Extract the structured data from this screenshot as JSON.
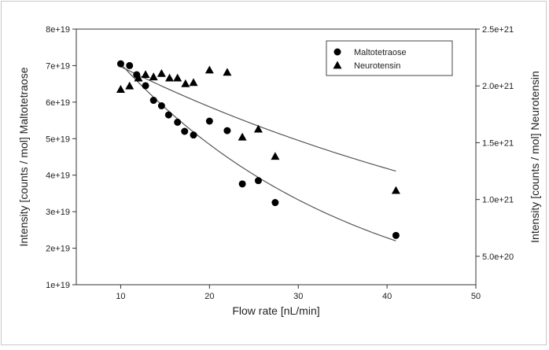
{
  "chart_data": {
    "type": "scatter",
    "xlabel": "Flow rate [nL/min]",
    "ylabel_left": "Intensity [counts / mol] Maltotetraose",
    "ylabel_right": "Intensity [counts / mol] Neurotensin",
    "xlim": [
      5,
      50
    ],
    "ylim_left": [
      1e+19,
      8e+19
    ],
    "ylim_right": [
      2.5e+20,
      2.5e+21
    ],
    "x_ticks": [
      {
        "value": 10,
        "label": "10"
      },
      {
        "value": 20,
        "label": "20"
      },
      {
        "value": 30,
        "label": "30"
      },
      {
        "value": 40,
        "label": "40"
      },
      {
        "value": 50,
        "label": "50"
      }
    ],
    "y_left_ticks": [
      {
        "value": 1e+19,
        "label": "1e+19"
      },
      {
        "value": 2e+19,
        "label": "2e+19"
      },
      {
        "value": 3e+19,
        "label": "3e+19"
      },
      {
        "value": 4e+19,
        "label": "4e+19"
      },
      {
        "value": 5e+19,
        "label": "5e+19"
      },
      {
        "value": 6e+19,
        "label": "6e+19"
      },
      {
        "value": 7e+19,
        "label": "7e+19"
      },
      {
        "value": 8e+19,
        "label": "8e+19"
      }
    ],
    "y_right_ticks": [
      {
        "value": 5e+20,
        "label": "5.0e+20"
      },
      {
        "value": 1e+21,
        "label": "1.0e+21"
      },
      {
        "value": 1.5e+21,
        "label": "1.5e+21"
      },
      {
        "value": 2e+21,
        "label": "2.0e+21"
      },
      {
        "value": 2.5e+21,
        "label": "2.5e+21"
      }
    ],
    "legend_position": "top-right",
    "series": [
      {
        "name": "Maltotetraose",
        "marker": "circle",
        "axis": "left",
        "color": "#000000",
        "x": [
          10.0,
          11.0,
          11.8,
          12.8,
          13.7,
          14.6,
          15.4,
          16.4,
          17.2,
          18.2,
          20.0,
          22.0,
          23.7,
          25.5,
          27.4,
          41.0
        ],
        "y": [
          7.05e+19,
          7e+19,
          6.75e+19,
          6.45e+19,
          6.05e+19,
          5.9e+19,
          5.65e+19,
          5.45e+19,
          5.2e+19,
          5.1e+19,
          5.48e+19,
          5.22e+19,
          3.76e+19,
          3.85e+19,
          3.25e+19,
          2.35e+19
        ]
      },
      {
        "name": "Neurotensin",
        "marker": "triangle",
        "axis": "right",
        "color": "#000000",
        "x": [
          10.0,
          11.0,
          12.0,
          12.8,
          13.7,
          14.6,
          15.5,
          16.4,
          17.3,
          18.2,
          20.0,
          22.0,
          23.7,
          25.5,
          27.4,
          41.0
        ],
        "y": [
          1.97e+21,
          2e+21,
          2.07e+21,
          2.1e+21,
          2.08e+21,
          2.11e+21,
          2.07e+21,
          2.07e+21,
          2.02e+21,
          2.03e+21,
          2.14e+21,
          2.12e+21,
          1.55e+21,
          1.62e+21,
          1.38e+21,
          1.08e+21
        ]
      }
    ],
    "fit_lines": [
      {
        "name": "Maltotetraose fit",
        "axis": "left",
        "x": [
          10,
          41
        ],
        "y": [
          7.05e+19,
          2.2e+19
        ],
        "curvature": "exponential"
      },
      {
        "name": "Neurotensin fit",
        "axis": "right",
        "x": [
          10,
          41
        ],
        "y": [
          2.17e+21,
          1.25e+21
        ],
        "curvature": "exponential"
      }
    ]
  }
}
